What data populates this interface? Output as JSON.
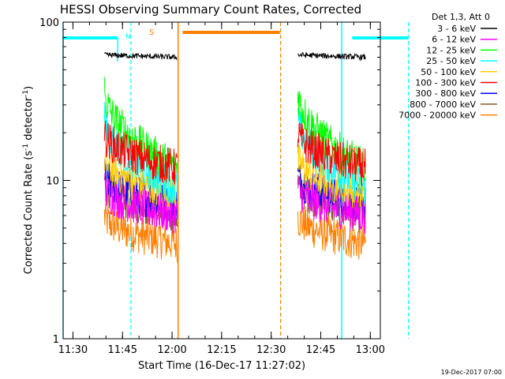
{
  "chart_data": {
    "type": "line",
    "title": "HESSI Observing Summary Count Rates, Corrected",
    "xlabel": "Start Time (16-Dec-17 11:27:02)",
    "ylabel": "Corrected Count Rate (s⁻¹ detector⁻¹)",
    "ylabel_main": "Corrected Count Rate (s",
    "ylabel_sup1": "-1",
    "ylabel_mid": " detector",
    "ylabel_sup2": "-1",
    "ylabel_end": ")",
    "yscale": "log",
    "ylim": [
      1,
      100
    ],
    "xlim_minutes": [
      0,
      96
    ],
    "x_ticks": [
      "11:30",
      "11:45",
      "12:00",
      "12:15",
      "12:30",
      "12:45",
      "13:00"
    ],
    "y_ticks": [
      "1",
      "10",
      "100"
    ],
    "legend_title": "Det 1,3, Att 0",
    "legend_position": "right",
    "timestamp": "19-Dec-2017 07:00",
    "colors": {
      "cyan": "#00ffff",
      "orange": "#ff7f00"
    },
    "flags": [
      {
        "label": "N",
        "color": "#00ffff"
      },
      {
        "label": "S",
        "color": "#ff7f00"
      }
    ],
    "series": [
      {
        "name": "3 - 6 keV",
        "color": "#000000",
        "level_start": 62,
        "level_end": 60
      },
      {
        "name": "6 - 12 keV",
        "color": "#ff00ff",
        "level_start": 9,
        "level_end": 6
      },
      {
        "name": "12 - 25 keV",
        "color": "#00ff00",
        "level_start": 38,
        "level_end": 12
      },
      {
        "name": "25 - 50 keV",
        "color": "#00ffff",
        "level_start": 26,
        "level_end": 9
      },
      {
        "name": "50 - 100 keV",
        "color": "#ffcc00",
        "level_start": 14,
        "level_end": 8
      },
      {
        "name": "100 - 300 keV",
        "color": "#ff0000",
        "level_start": 20,
        "level_end": 12
      },
      {
        "name": "300 - 800 keV",
        "color": "#0000ff",
        "level_start": 11,
        "level_end": 7
      },
      {
        "name": "800 - 7000 keV",
        "color": "#8b5a2b",
        "level_start": 10,
        "level_end": 6
      },
      {
        "name": "7000 - 20000 keV",
        "color": "#ff7f00",
        "level_start": 6,
        "level_end": 4
      }
    ]
  }
}
